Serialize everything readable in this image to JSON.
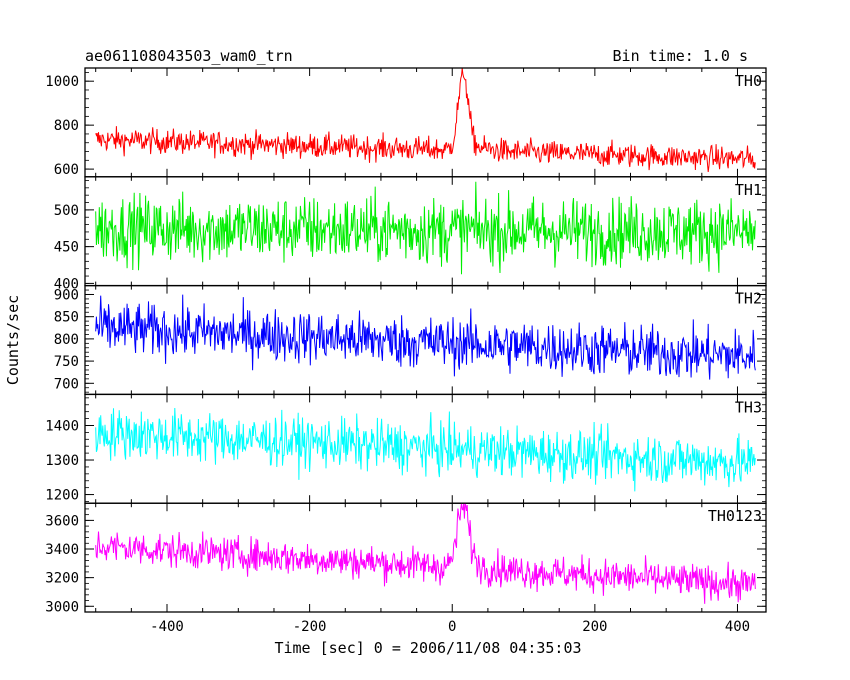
{
  "chart_data": {
    "type": "line",
    "title_left": "ae061108043503_wam0_trn",
    "title_right": "Bin time: 1.0 s",
    "xlabel": "Time [sec] 0 = 2006/11/08 04:35:03",
    "ylabel": "Counts/sec",
    "xlim": [
      -515,
      440
    ],
    "x_data_range": [
      -500,
      425
    ],
    "x_step": 1,
    "xticks": [
      -400,
      -200,
      0,
      200,
      400
    ],
    "grid": false,
    "panels": [
      {
        "name": "TH0",
        "color": "#ff0000",
        "ylim": [
          565,
          1060
        ],
        "yticks": [
          600,
          800,
          1000
        ],
        "baseline_start": 735,
        "baseline_end": 645,
        "noise": 28,
        "peak": {
          "x": 15,
          "height": 330,
          "width": 7
        }
      },
      {
        "name": "TH1",
        "color": "#00ee00",
        "ylim": [
          397,
          545
        ],
        "yticks": [
          400,
          450,
          500
        ],
        "baseline_start": 475,
        "baseline_end": 470,
        "noise": 23,
        "peak": null
      },
      {
        "name": "TH2",
        "color": "#0000ff",
        "ylim": [
          675,
          920
        ],
        "yticks": [
          700,
          750,
          800,
          850,
          900
        ],
        "baseline_start": 825,
        "baseline_end": 760,
        "noise": 30,
        "peak": null
      },
      {
        "name": "TH3",
        "color": "#00ffff",
        "ylim": [
          1175,
          1490
        ],
        "yticks": [
          1200,
          1300,
          1400
        ],
        "baseline_start": 1380,
        "baseline_end": 1290,
        "noise": 37,
        "peak": null
      },
      {
        "name": "TH0123",
        "color": "#ff00ff",
        "ylim": [
          2960,
          3720
        ],
        "yticks": [
          3000,
          3200,
          3400,
          3600
        ],
        "baseline_start": 3420,
        "baseline_end": 3150,
        "noise": 60,
        "peak": {
          "x": 15,
          "height": 420,
          "width": 8
        }
      }
    ]
  }
}
